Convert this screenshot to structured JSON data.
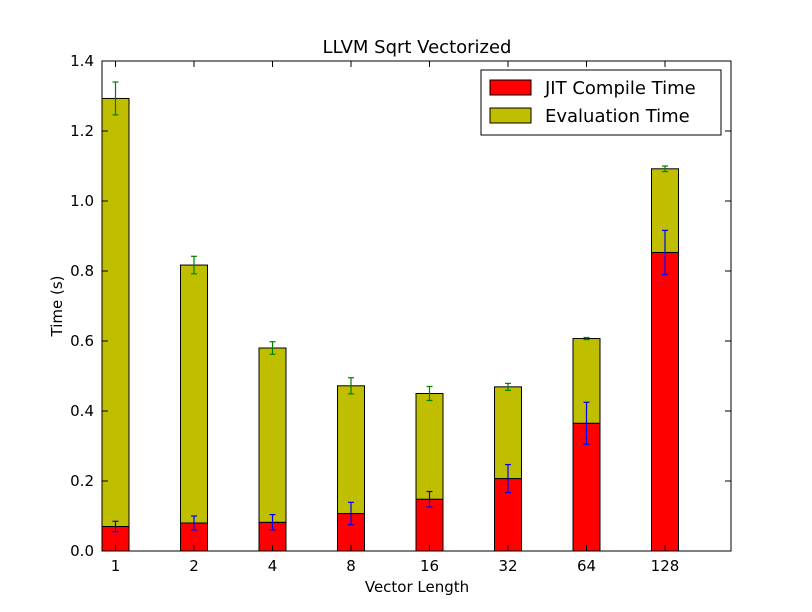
{
  "chart_data": {
    "type": "bar",
    "stacked": true,
    "title": "LLVM Sqrt Vectorized",
    "xlabel": "Vector Length",
    "ylabel": "Time (s)",
    "categories": [
      "1",
      "2",
      "4",
      "8",
      "16",
      "32",
      "64",
      "128"
    ],
    "ylim": [
      0,
      1.4
    ],
    "yticks": [
      "0.0",
      "0.2",
      "0.4",
      "0.6",
      "0.8",
      "1.0",
      "1.2",
      "1.4"
    ],
    "grid": false,
    "legend_position": "top-right",
    "series": [
      {
        "name": "JIT Compile Time",
        "color": "#ff0000",
        "errorbar_color": "#0000ff",
        "values": [
          0.07,
          0.08,
          0.082,
          0.107,
          0.148,
          0.207,
          0.365,
          0.853
        ],
        "errors": [
          0.015,
          0.02,
          0.022,
          0.032,
          0.022,
          0.04,
          0.06,
          0.063
        ]
      },
      {
        "name": "Evaluation Time",
        "color": "#bfbf00",
        "errorbar_color": "#008000",
        "values": [
          1.223,
          0.737,
          0.498,
          0.365,
          0.302,
          0.262,
          0.242,
          0.239
        ],
        "errors": [
          0.047,
          0.025,
          0.018,
          0.023,
          0.02,
          0.01,
          0.003,
          0.008
        ]
      }
    ]
  }
}
